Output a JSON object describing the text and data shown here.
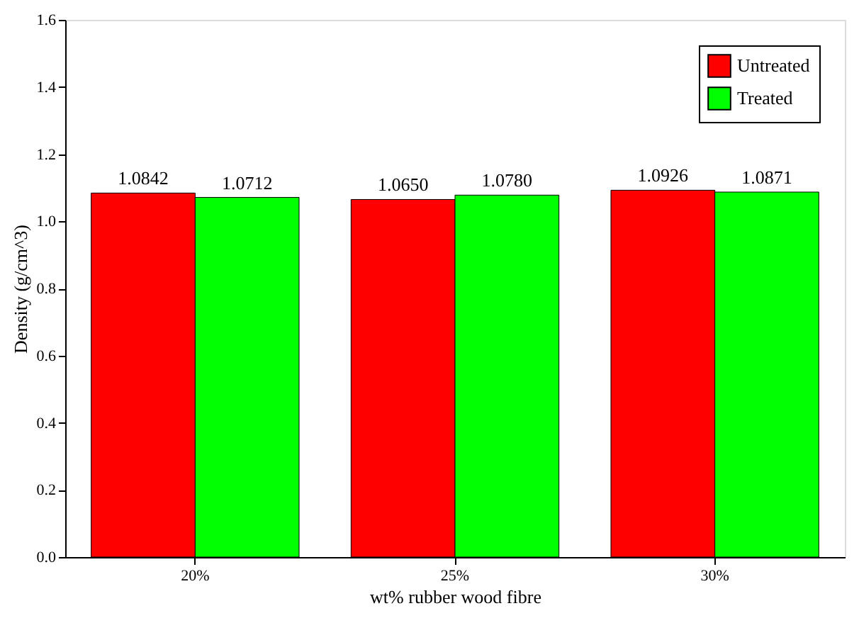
{
  "chart_data": {
    "type": "bar",
    "xlabel": "wt% rubber wood fibre",
    "ylabel": "Density (g/cm^3)",
    "categories": [
      "20%",
      "25%",
      "30%"
    ],
    "series": [
      {
        "name": "Untreated",
        "color": "#ff0000",
        "values": [
          1.0842,
          1.065,
          1.0926
        ],
        "value_labels": [
          "1.0842",
          "1.0650",
          "1.0926"
        ]
      },
      {
        "name": "Treated",
        "color": "#00ff00",
        "values": [
          1.0712,
          1.078,
          1.0871
        ],
        "value_labels": [
          "1.0712",
          "1.0780",
          "1.0871"
        ]
      }
    ],
    "ylim": [
      0,
      1.6
    ],
    "yticks": [
      {
        "value": 0,
        "label": "0.0"
      },
      0.2,
      0.4,
      0.6,
      0.8,
      {
        "value": 1,
        "label": "1.0"
      },
      1.2,
      1.4,
      1.6
    ],
    "grid": false,
    "legend": "top right"
  }
}
